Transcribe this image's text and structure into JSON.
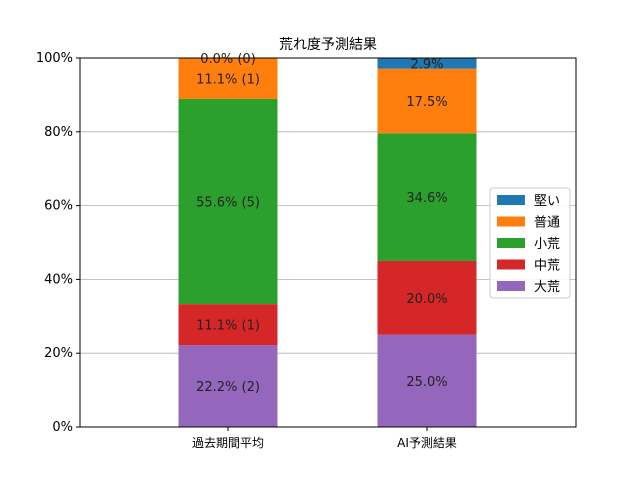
{
  "chart_data": {
    "type": "bar",
    "stacked": true,
    "title": "荒れ度予測結果",
    "xlabel": "",
    "ylabel": "",
    "ylim": [
      0,
      100
    ],
    "y_tick_format": "percent",
    "y_ticks": [
      "0%",
      "20%",
      "40%",
      "60%",
      "80%",
      "100%"
    ],
    "grid": "y",
    "legend": "center-right",
    "categories": [
      "過去期間平均",
      "AI予測結果"
    ],
    "series": [
      {
        "name": "大荒",
        "color": "#9467bd",
        "values": [
          22.2,
          25.0
        ],
        "labels": [
          "22.2% (2)",
          "25.0%"
        ]
      },
      {
        "name": "中荒",
        "color": "#d62728",
        "values": [
          11.1,
          20.0
        ],
        "labels": [
          "11.1% (1)",
          "20.0%"
        ]
      },
      {
        "name": "小荒",
        "color": "#2ca02c",
        "values": [
          55.6,
          34.6
        ],
        "labels": [
          "55.6% (5)",
          "34.6%"
        ]
      },
      {
        "name": "普通",
        "color": "#ff7f0e",
        "values": [
          11.1,
          17.5
        ],
        "labels": [
          "11.1% (1)",
          "17.5%"
        ]
      },
      {
        "name": "堅い",
        "color": "#1f77b4",
        "values": [
          0.0,
          2.9
        ],
        "labels": [
          "0.0% (0)",
          "2.9%"
        ]
      }
    ],
    "legend_order": [
      "堅い",
      "普通",
      "小荒",
      "中荒",
      "大荒"
    ]
  }
}
